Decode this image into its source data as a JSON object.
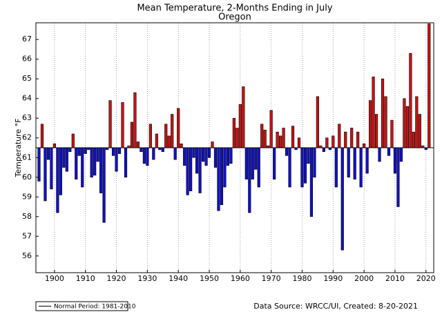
{
  "chart_data": {
    "type": "bar",
    "title": "Mean Temperature, 2-Months Ending in July",
    "subtitle": "Oregon",
    "y_label": "Temperature °F",
    "legend_label": "Normal Period: 1981-2010",
    "source": "Data Source: WRCC/UI, Created: 8-20-2021",
    "normal": 61.5,
    "above_color": "#cc1111",
    "below_color": "#1111cc",
    "grid": "x",
    "xlim": [
      1894,
      2022.5
    ],
    "ylim": [
      55.15,
      67.85
    ],
    "xticks": [
      1900,
      1910,
      1920,
      1930,
      1940,
      1950,
      1960,
      1970,
      1980,
      1990,
      2000,
      2010,
      2020
    ],
    "yticks": [
      56,
      57,
      58,
      59,
      60,
      61,
      62,
      63,
      64,
      65,
      66,
      67
    ],
    "x": [
      1895,
      1896,
      1897,
      1898,
      1899,
      1900,
      1901,
      1902,
      1903,
      1904,
      1905,
      1906,
      1907,
      1908,
      1909,
      1910,
      1911,
      1912,
      1913,
      1914,
      1915,
      1916,
      1917,
      1918,
      1919,
      1920,
      1921,
      1922,
      1923,
      1924,
      1925,
      1926,
      1927,
      1928,
      1929,
      1930,
      1931,
      1932,
      1933,
      1934,
      1935,
      1936,
      1937,
      1938,
      1939,
      1940,
      1941,
      1942,
      1943,
      1944,
      1945,
      1946,
      1947,
      1948,
      1949,
      1950,
      1951,
      1952,
      1953,
      1954,
      1955,
      1956,
      1957,
      1958,
      1959,
      1960,
      1961,
      1962,
      1963,
      1964,
      1965,
      1966,
      1967,
      1968,
      1969,
      1970,
      1971,
      1972,
      1973,
      1974,
      1975,
      1976,
      1977,
      1978,
      1979,
      1980,
      1981,
      1982,
      1983,
      1984,
      1985,
      1986,
      1987,
      1988,
      1989,
      1990,
      1991,
      1992,
      1993,
      1994,
      1995,
      1996,
      1997,
      1998,
      1999,
      2000,
      2001,
      2002,
      2003,
      2004,
      2005,
      2006,
      2007,
      2008,
      2009,
      2010,
      2011,
      2012,
      2013,
      2014,
      2015,
      2016,
      2017,
      2018,
      2019,
      2020,
      2021
    ],
    "values": [
      59.8,
      62.7,
      58.8,
      60.9,
      59.4,
      61.7,
      58.2,
      59.1,
      60.5,
      60.3,
      61.3,
      62.2,
      59.9,
      61.1,
      59.5,
      61.2,
      61.4,
      60.0,
      60.1,
      60.8,
      59.2,
      57.7,
      61.4,
      63.9,
      61.1,
      60.3,
      61.2,
      63.8,
      60.0,
      61.6,
      62.8,
      64.3,
      61.8,
      61.3,
      60.7,
      60.6,
      62.7,
      60.9,
      62.2,
      61.4,
      61.3,
      62.7,
      62.1,
      63.2,
      60.9,
      63.5,
      61.7,
      60.6,
      59.1,
      59.3,
      61.0,
      60.2,
      59.2,
      60.8,
      60.6,
      61.0,
      61.8,
      60.5,
      58.3,
      58.6,
      59.5,
      60.6,
      60.7,
      63.0,
      62.5,
      63.7,
      64.6,
      59.9,
      58.2,
      59.9,
      60.4,
      59.5,
      62.7,
      62.4,
      61.6,
      63.4,
      59.9,
      62.3,
      62.1,
      62.5,
      61.1,
      59.5,
      62.6,
      61.4,
      62.0,
      59.5,
      59.7,
      60.7,
      58.0,
      60.0,
      64.1,
      61.6,
      61.3,
      62.0,
      61.4,
      62.1,
      59.5,
      62.7,
      56.3,
      62.3,
      60.0,
      62.5,
      59.9,
      62.3,
      59.5,
      61.7,
      60.2,
      63.9,
      65.1,
      63.2,
      60.8,
      65.0,
      64.1,
      61.1,
      62.9,
      60.2,
      58.5,
      60.8,
      64.0,
      63.6,
      66.3,
      62.3,
      64.1,
      63.2,
      61.6,
      61.4,
      67.8
    ]
  }
}
